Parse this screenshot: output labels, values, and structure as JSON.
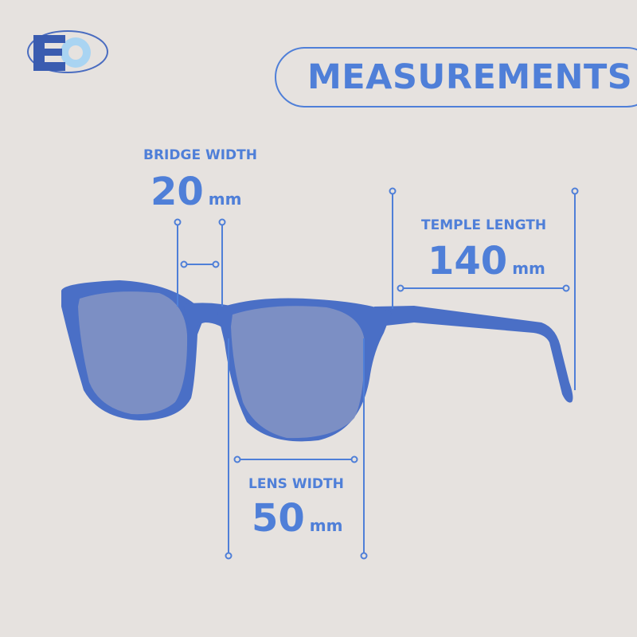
{
  "logo": {
    "text": "EO",
    "colors": {
      "e": "#3a5cb0",
      "o": "#a9d4f2",
      "ring": "#4a6cc0"
    }
  },
  "title": "MEASUREMENTS",
  "measurements": {
    "bridge": {
      "label": "BRIDGE WIDTH",
      "value": "20",
      "unit": "mm"
    },
    "temple": {
      "label": "TEMPLE LENGTH",
      "value": "140",
      "unit": "mm"
    },
    "lens": {
      "label": "LENS WIDTH",
      "value": "50",
      "unit": "mm"
    }
  },
  "colors": {
    "background": "#e6e2df",
    "accent": "#4f7fd8",
    "frame": "#4a6fc6",
    "lens": "#7c8fc4"
  }
}
